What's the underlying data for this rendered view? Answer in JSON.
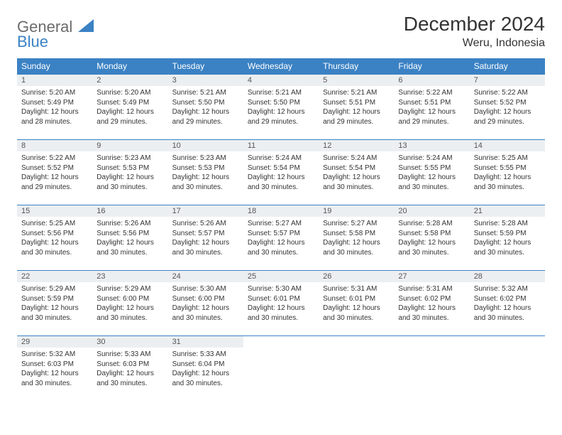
{
  "logo": {
    "line1": "General",
    "line2": "Blue"
  },
  "title": "December 2024",
  "location": "Weru, Indonesia",
  "weekdays": [
    "Sunday",
    "Monday",
    "Tuesday",
    "Wednesday",
    "Thursday",
    "Friday",
    "Saturday"
  ],
  "colors": {
    "header_bg": "#3b82c4",
    "daynum_bg": "#eceff1",
    "row_border": "#3b82c4",
    "logo_gray": "#6b6b6b",
    "logo_blue": "#3b82c4"
  },
  "days": [
    {
      "n": "1",
      "sunrise": "Sunrise: 5:20 AM",
      "sunset": "Sunset: 5:49 PM",
      "day1": "Daylight: 12 hours",
      "day2": "and 28 minutes."
    },
    {
      "n": "2",
      "sunrise": "Sunrise: 5:20 AM",
      "sunset": "Sunset: 5:49 PM",
      "day1": "Daylight: 12 hours",
      "day2": "and 29 minutes."
    },
    {
      "n": "3",
      "sunrise": "Sunrise: 5:21 AM",
      "sunset": "Sunset: 5:50 PM",
      "day1": "Daylight: 12 hours",
      "day2": "and 29 minutes."
    },
    {
      "n": "4",
      "sunrise": "Sunrise: 5:21 AM",
      "sunset": "Sunset: 5:50 PM",
      "day1": "Daylight: 12 hours",
      "day2": "and 29 minutes."
    },
    {
      "n": "5",
      "sunrise": "Sunrise: 5:21 AM",
      "sunset": "Sunset: 5:51 PM",
      "day1": "Daylight: 12 hours",
      "day2": "and 29 minutes."
    },
    {
      "n": "6",
      "sunrise": "Sunrise: 5:22 AM",
      "sunset": "Sunset: 5:51 PM",
      "day1": "Daylight: 12 hours",
      "day2": "and 29 minutes."
    },
    {
      "n": "7",
      "sunrise": "Sunrise: 5:22 AM",
      "sunset": "Sunset: 5:52 PM",
      "day1": "Daylight: 12 hours",
      "day2": "and 29 minutes."
    },
    {
      "n": "8",
      "sunrise": "Sunrise: 5:22 AM",
      "sunset": "Sunset: 5:52 PM",
      "day1": "Daylight: 12 hours",
      "day2": "and 29 minutes."
    },
    {
      "n": "9",
      "sunrise": "Sunrise: 5:23 AM",
      "sunset": "Sunset: 5:53 PM",
      "day1": "Daylight: 12 hours",
      "day2": "and 30 minutes."
    },
    {
      "n": "10",
      "sunrise": "Sunrise: 5:23 AM",
      "sunset": "Sunset: 5:53 PM",
      "day1": "Daylight: 12 hours",
      "day2": "and 30 minutes."
    },
    {
      "n": "11",
      "sunrise": "Sunrise: 5:24 AM",
      "sunset": "Sunset: 5:54 PM",
      "day1": "Daylight: 12 hours",
      "day2": "and 30 minutes."
    },
    {
      "n": "12",
      "sunrise": "Sunrise: 5:24 AM",
      "sunset": "Sunset: 5:54 PM",
      "day1": "Daylight: 12 hours",
      "day2": "and 30 minutes."
    },
    {
      "n": "13",
      "sunrise": "Sunrise: 5:24 AM",
      "sunset": "Sunset: 5:55 PM",
      "day1": "Daylight: 12 hours",
      "day2": "and 30 minutes."
    },
    {
      "n": "14",
      "sunrise": "Sunrise: 5:25 AM",
      "sunset": "Sunset: 5:55 PM",
      "day1": "Daylight: 12 hours",
      "day2": "and 30 minutes."
    },
    {
      "n": "15",
      "sunrise": "Sunrise: 5:25 AM",
      "sunset": "Sunset: 5:56 PM",
      "day1": "Daylight: 12 hours",
      "day2": "and 30 minutes."
    },
    {
      "n": "16",
      "sunrise": "Sunrise: 5:26 AM",
      "sunset": "Sunset: 5:56 PM",
      "day1": "Daylight: 12 hours",
      "day2": "and 30 minutes."
    },
    {
      "n": "17",
      "sunrise": "Sunrise: 5:26 AM",
      "sunset": "Sunset: 5:57 PM",
      "day1": "Daylight: 12 hours",
      "day2": "and 30 minutes."
    },
    {
      "n": "18",
      "sunrise": "Sunrise: 5:27 AM",
      "sunset": "Sunset: 5:57 PM",
      "day1": "Daylight: 12 hours",
      "day2": "and 30 minutes."
    },
    {
      "n": "19",
      "sunrise": "Sunrise: 5:27 AM",
      "sunset": "Sunset: 5:58 PM",
      "day1": "Daylight: 12 hours",
      "day2": "and 30 minutes."
    },
    {
      "n": "20",
      "sunrise": "Sunrise: 5:28 AM",
      "sunset": "Sunset: 5:58 PM",
      "day1": "Daylight: 12 hours",
      "day2": "and 30 minutes."
    },
    {
      "n": "21",
      "sunrise": "Sunrise: 5:28 AM",
      "sunset": "Sunset: 5:59 PM",
      "day1": "Daylight: 12 hours",
      "day2": "and 30 minutes."
    },
    {
      "n": "22",
      "sunrise": "Sunrise: 5:29 AM",
      "sunset": "Sunset: 5:59 PM",
      "day1": "Daylight: 12 hours",
      "day2": "and 30 minutes."
    },
    {
      "n": "23",
      "sunrise": "Sunrise: 5:29 AM",
      "sunset": "Sunset: 6:00 PM",
      "day1": "Daylight: 12 hours",
      "day2": "and 30 minutes."
    },
    {
      "n": "24",
      "sunrise": "Sunrise: 5:30 AM",
      "sunset": "Sunset: 6:00 PM",
      "day1": "Daylight: 12 hours",
      "day2": "and 30 minutes."
    },
    {
      "n": "25",
      "sunrise": "Sunrise: 5:30 AM",
      "sunset": "Sunset: 6:01 PM",
      "day1": "Daylight: 12 hours",
      "day2": "and 30 minutes."
    },
    {
      "n": "26",
      "sunrise": "Sunrise: 5:31 AM",
      "sunset": "Sunset: 6:01 PM",
      "day1": "Daylight: 12 hours",
      "day2": "and 30 minutes."
    },
    {
      "n": "27",
      "sunrise": "Sunrise: 5:31 AM",
      "sunset": "Sunset: 6:02 PM",
      "day1": "Daylight: 12 hours",
      "day2": "and 30 minutes."
    },
    {
      "n": "28",
      "sunrise": "Sunrise: 5:32 AM",
      "sunset": "Sunset: 6:02 PM",
      "day1": "Daylight: 12 hours",
      "day2": "and 30 minutes."
    },
    {
      "n": "29",
      "sunrise": "Sunrise: 5:32 AM",
      "sunset": "Sunset: 6:03 PM",
      "day1": "Daylight: 12 hours",
      "day2": "and 30 minutes."
    },
    {
      "n": "30",
      "sunrise": "Sunrise: 5:33 AM",
      "sunset": "Sunset: 6:03 PM",
      "day1": "Daylight: 12 hours",
      "day2": "and 30 minutes."
    },
    {
      "n": "31",
      "sunrise": "Sunrise: 5:33 AM",
      "sunset": "Sunset: 6:04 PM",
      "day1": "Daylight: 12 hours",
      "day2": "and 30 minutes."
    }
  ]
}
